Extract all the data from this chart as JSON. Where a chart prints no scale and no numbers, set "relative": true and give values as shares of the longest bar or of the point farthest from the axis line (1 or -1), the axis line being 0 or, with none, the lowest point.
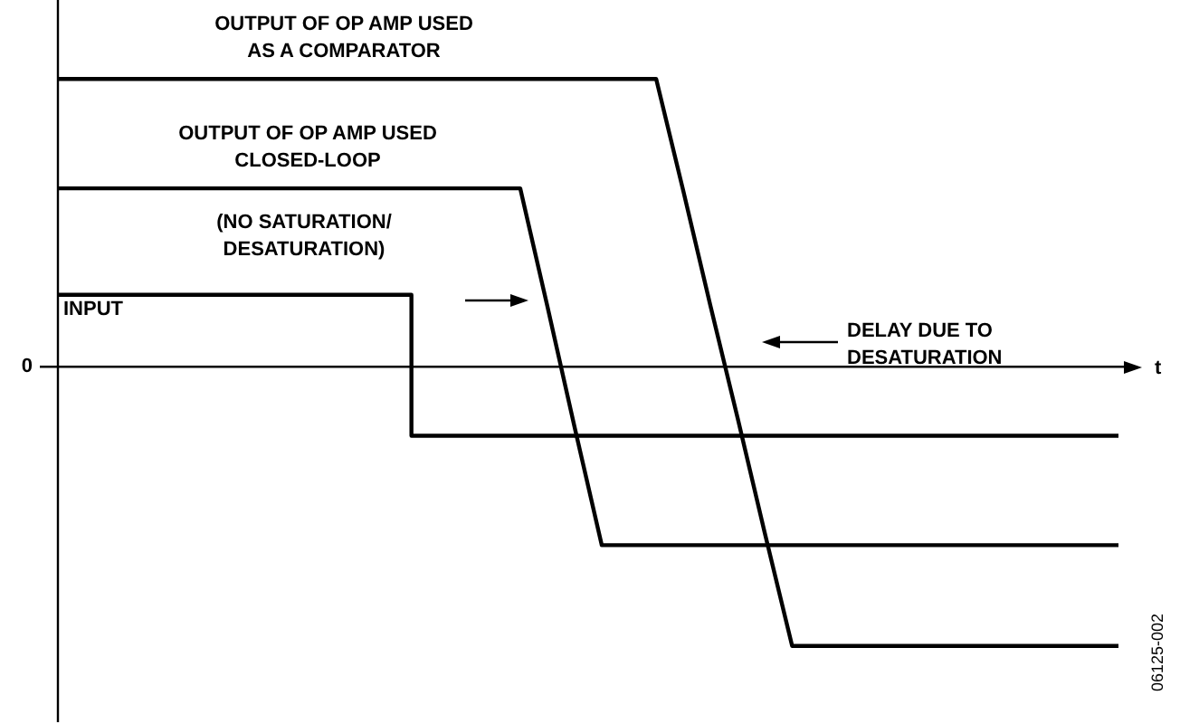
{
  "chart_data": {
    "type": "line",
    "relative": true,
    "xlabel": "t",
    "legend": false,
    "marker": "none",
    "line_style": "solid",
    "categories": [
      null,
      null,
      null,
      null,
      null,
      null,
      null,
      null,
      null,
      null,
      null,
      null,
      null,
      null,
      null,
      null,
      null,
      null,
      null,
      null,
      null,
      null,
      null,
      null,
      null,
      null,
      null,
      null,
      null,
      null,
      null,
      null,
      null,
      null,
      null,
      null,
      null,
      null,
      null,
      null
    ],
    "series": [
      {
        "name": "OUTPUT OF OP AMP USED\nAS A COMPARATOR",
        "color": "#000000",
        "values": [
          1,
          1,
          1,
          1,
          1,
          1,
          1,
          1,
          1,
          1,
          1,
          1,
          1,
          1,
          1,
          1,
          1,
          1,
          1,
          1,
          1,
          1,
          1,
          0.61,
          0.21,
          -0.18,
          -0.58,
          -0.97,
          -0.97,
          -0.97,
          -0.97,
          -0.97,
          -0.97,
          -0.97,
          -0.97,
          -0.97,
          -0.97,
          -0.97,
          -0.97,
          -0.97
        ]
      },
      {
        "name": "OUTPUT OF OP AMP USED\nCLOSED-LOOP",
        "color": "#000000",
        "values": [
          0.62,
          0.62,
          0.62,
          0.62,
          0.62,
          0.62,
          0.62,
          0.62,
          0.62,
          0.62,
          0.62,
          0.62,
          0.62,
          0.62,
          0.62,
          0.62,
          0.62,
          0.62,
          0.21,
          -0.21,
          -0.62,
          -0.62,
          -0.62,
          -0.62,
          -0.62,
          -0.62,
          -0.62,
          -0.62,
          -0.62,
          -0.62,
          -0.62,
          -0.62,
          -0.62,
          -0.62,
          -0.62,
          -0.62,
          -0.62,
          -0.62,
          -0.62,
          -0.62
        ]
      },
      {
        "name": "INPUT",
        "type": "step",
        "color": "#000000",
        "values": [
          0.25,
          0.25,
          0.25,
          0.25,
          0.25,
          0.25,
          0.25,
          0.25,
          0.25,
          0.25,
          0.25,
          0.25,
          0.25,
          -0.24,
          -0.24,
          -0.24,
          -0.24,
          -0.24,
          -0.24,
          -0.24,
          -0.24,
          -0.24,
          -0.24,
          -0.24,
          -0.24,
          -0.24,
          -0.24,
          -0.24,
          -0.24,
          -0.24,
          -0.24,
          -0.24,
          -0.24,
          -0.24,
          -0.24,
          -0.24,
          -0.24,
          -0.24,
          -0.24,
          -0.24
        ]
      }
    ],
    "annotations": [
      "0",
      "(NO SATURATION/\nDESATURATION)",
      "DELAY DUE TO\nDESATURATION",
      "06125-002"
    ]
  }
}
